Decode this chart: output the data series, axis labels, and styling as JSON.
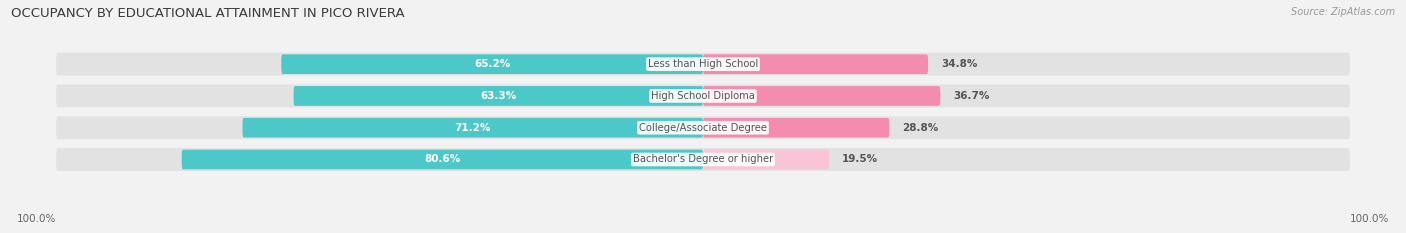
{
  "title": "OCCUPANCY BY EDUCATIONAL ATTAINMENT IN PICO RIVERA",
  "source": "Source: ZipAtlas.com",
  "categories": [
    "Less than High School",
    "High School Diploma",
    "College/Associate Degree",
    "Bachelor's Degree or higher"
  ],
  "owner_values": [
    65.2,
    63.3,
    71.2,
    80.6
  ],
  "renter_values": [
    34.8,
    36.7,
    28.8,
    19.5
  ],
  "owner_color": "#4dc8c8",
  "renter_color": "#f48cb0",
  "renter_color_light": "#f9c4d8",
  "bg_color": "#f2f2f2",
  "bar_bg_color": "#e2e2e2",
  "title_fontsize": 9.5,
  "label_fontsize": 7.5,
  "axis_label_fontsize": 7.5,
  "legend_fontsize": 8,
  "bar_height": 0.62,
  "center_label_color": "#555555",
  "owner_text_color": "#ffffff",
  "renter_text_color": "#555555",
  "x_left_label": "100.0%",
  "x_right_label": "100.0%"
}
